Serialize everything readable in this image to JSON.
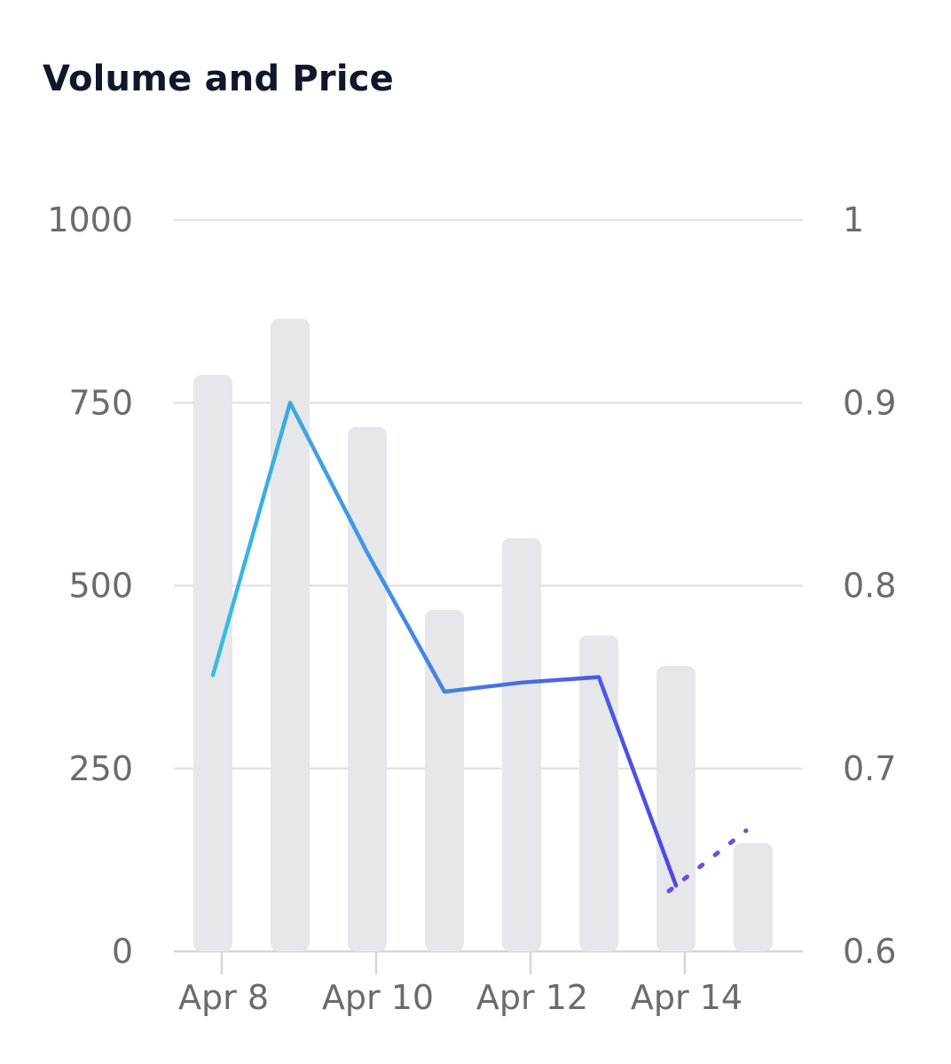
{
  "card": {
    "title": "Volume and Price"
  },
  "chart_data": {
    "type": "bar+line",
    "title": "Volume and Price",
    "x": [
      "2024-04-08",
      "2024-04-09",
      "2024-04-10",
      "2024-04-11",
      "2024-04-12",
      "2024-04-13",
      "2024-04-14",
      "2024-04-15"
    ],
    "x_tick_labels": [
      {
        "date": "2024-04-08",
        "label": "Apr 8"
      },
      {
        "date": "2024-04-10",
        "label": "Apr 10"
      },
      {
        "date": "2024-04-12",
        "label": "Apr 12"
      },
      {
        "date": "2024-04-14",
        "label": "Apr 14"
      }
    ],
    "y_left": {
      "range": [
        0,
        1000
      ],
      "ticks": [
        "0",
        "250",
        "500",
        "750",
        "1000"
      ]
    },
    "y_right": {
      "range": [
        0.6,
        1.0
      ],
      "ticks": [
        "0.6",
        "0.7",
        "0.8",
        "0.9",
        "1"
      ]
    },
    "grid": true,
    "volume": {
      "axis": "left",
      "color": "#e5e7ea",
      "values": [
        788,
        865,
        717,
        467,
        565,
        432,
        390,
        148
      ]
    },
    "price": {
      "axis": "right",
      "color_start": "#38bde0",
      "color_end": "#4f46e5",
      "points": [
        {
          "date": "2024-04-08",
          "value": 0.751
        },
        {
          "date": "2024-04-09",
          "value": 0.9
        },
        {
          "date": "2024-04-10",
          "value": 0.818
        },
        {
          "date": "2024-04-11",
          "value": 0.742
        },
        {
          "date": "2024-04-12",
          "value": 0.747
        },
        {
          "date": "2024-04-13",
          "value": 0.75
        },
        {
          "date": "2024-04-14",
          "value": 0.636
        }
      ],
      "projection": {
        "style": "dotted",
        "color": "#6d4fd8",
        "points": [
          {
            "date": "2024-04-14",
            "value": 0.633
          },
          {
            "date": "2024-04-15",
            "value": 0.666
          }
        ]
      }
    }
  }
}
